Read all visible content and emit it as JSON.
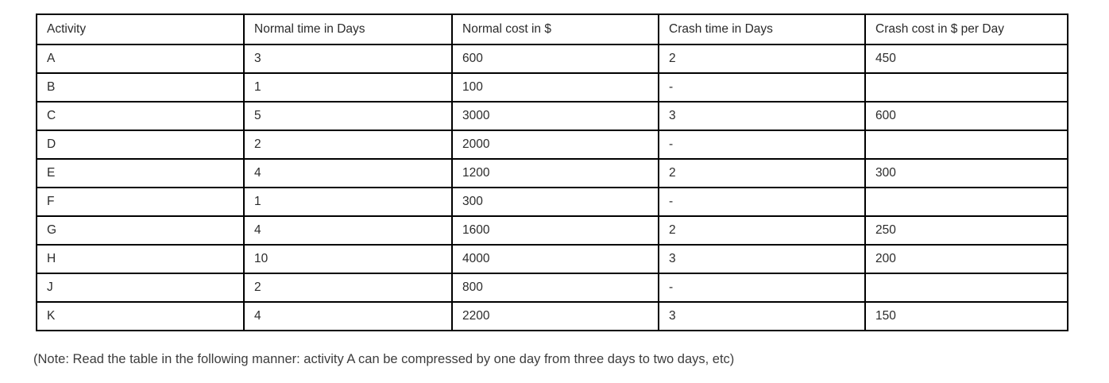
{
  "table": {
    "columns": [
      "Activity",
      "Normal time in Days",
      "Normal cost in $",
      "Crash time in Days",
      "Crash cost in $ per Day"
    ],
    "rows": [
      [
        "A",
        "3",
        "600",
        "2",
        "450"
      ],
      [
        "B",
        "1",
        "100",
        "-",
        ""
      ],
      [
        "C",
        "5",
        "3000",
        "3",
        "600"
      ],
      [
        "D",
        "2",
        "2000",
        "-",
        ""
      ],
      [
        "E",
        "4",
        "1200",
        "2",
        "300"
      ],
      [
        "F",
        "1",
        "300",
        "-",
        ""
      ],
      [
        "G",
        "4",
        "1600",
        "2",
        "250"
      ],
      [
        "H",
        "10",
        "4000",
        "3",
        "200"
      ],
      [
        "J",
        "2",
        "800",
        "-",
        ""
      ],
      [
        "K",
        "4",
        "2200",
        "3",
        "150"
      ]
    ]
  },
  "note": "(Note: Read the table in the following manner: activity A can be compressed by one day from three days to two days, etc)",
  "colors": {
    "border": "#000000",
    "text": "#2b2b2b",
    "note_text": "#3d3d3d",
    "background": "#ffffff"
  }
}
